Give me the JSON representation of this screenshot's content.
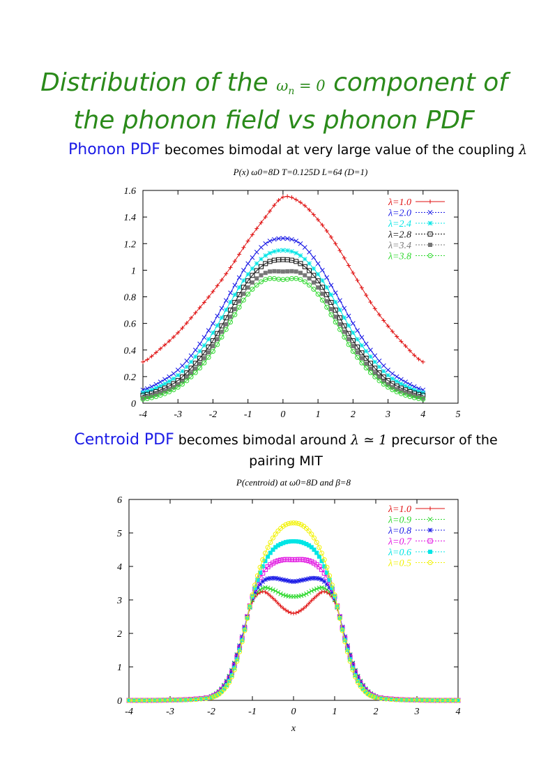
{
  "slide": {
    "title_line1_pre": "Distribution of the ",
    "title_math": "ω",
    "title_math_sub": "n",
    "title_math_rest": " = 0",
    "title_line1_post": " component of",
    "title_line2": "the phonon field vs phonon PDF",
    "caption1_highlight": "Phonon PDF",
    "caption1_text": " becomes bimodal at very large value of the coupling ",
    "caption1_math": "λ",
    "caption2_highlight": "Centroid PDF",
    "caption2_text_a": " becomes bimodal around ",
    "caption2_math": "λ ≃ 1",
    "caption2_text_b": " precursor of the pairing MIT",
    "colors": {
      "title": "#2a8a1a",
      "highlight": "#1a1ae6"
    }
  },
  "chart_data": [
    {
      "type": "line",
      "title": "P(x) ω0=8D T=0.125D L=64 (D=1)",
      "xlabel": "",
      "ylabel": "",
      "xlim": [
        -4,
        5
      ],
      "ylim": [
        0,
        1.6
      ],
      "xticks": [
        "-4",
        "-3",
        "-2",
        "-1",
        "0",
        "1",
        "2",
        "3",
        "4",
        "5"
      ],
      "yticks": [
        "0",
        "0.2",
        "0.4",
        "0.6",
        "0.8",
        "1",
        "1.2",
        "1.4",
        "1.6"
      ],
      "legend_position": "top-right",
      "x": [
        -4,
        -3.5,
        -3,
        -2.5,
        -2,
        -1.5,
        -1,
        -0.5,
        0,
        0.5,
        1,
        1.5,
        2,
        2.5,
        3,
        3.5,
        4
      ],
      "series": [
        {
          "name": "λ=1.0",
          "color": "#e01010",
          "marker": "plus",
          "values": [
            0.31,
            0.41,
            0.53,
            0.68,
            0.84,
            1.02,
            1.22,
            1.4,
            1.55,
            1.51,
            1.38,
            1.2,
            0.98,
            0.76,
            0.58,
            0.43,
            0.31
          ]
        },
        {
          "name": "λ=2.0",
          "color": "#1a1ae6",
          "marker": "x",
          "values": [
            0.1,
            0.16,
            0.25,
            0.4,
            0.6,
            0.83,
            1.05,
            1.2,
            1.24,
            1.2,
            1.05,
            0.83,
            0.6,
            0.4,
            0.25,
            0.16,
            0.1
          ]
        },
        {
          "name": "λ=2.4",
          "color": "#00e5e5",
          "marker": "star",
          "values": [
            0.08,
            0.13,
            0.21,
            0.35,
            0.53,
            0.76,
            0.97,
            1.11,
            1.15,
            1.11,
            0.97,
            0.76,
            0.53,
            0.35,
            0.21,
            0.13,
            0.08
          ]
        },
        {
          "name": "λ=2.8",
          "color": "#111111",
          "marker": "square",
          "values": [
            0.06,
            0.1,
            0.17,
            0.3,
            0.47,
            0.7,
            0.92,
            1.05,
            1.08,
            1.05,
            0.92,
            0.7,
            0.47,
            0.3,
            0.17,
            0.1,
            0.06
          ]
        },
        {
          "name": "λ=3.4",
          "color": "#777777",
          "marker": "fsquare",
          "values": [
            0.04,
            0.08,
            0.14,
            0.26,
            0.43,
            0.65,
            0.87,
            0.98,
            0.99,
            0.98,
            0.87,
            0.65,
            0.43,
            0.26,
            0.14,
            0.08,
            0.04
          ]
        },
        {
          "name": "λ=3.8",
          "color": "#2ed82e",
          "marker": "circle",
          "values": [
            0.03,
            0.06,
            0.12,
            0.23,
            0.39,
            0.61,
            0.82,
            0.93,
            0.93,
            0.93,
            0.82,
            0.61,
            0.39,
            0.23,
            0.12,
            0.06,
            0.03
          ]
        }
      ]
    },
    {
      "type": "line",
      "title": "P(centroid) at ω0=8D and β=8",
      "xlabel": "x",
      "ylabel": "",
      "xlim": [
        -4,
        4
      ],
      "ylim": [
        0,
        6
      ],
      "xticks": [
        "-4",
        "-3",
        "-2",
        "-1",
        "0",
        "1",
        "2",
        "3",
        "4"
      ],
      "yticks": [
        "0",
        "1",
        "2",
        "3",
        "4",
        "5",
        "6"
      ],
      "legend_position": "top-right",
      "x": [
        -4,
        -3.5,
        -3,
        -2.5,
        -2,
        -1.75,
        -1.5,
        -1.25,
        -1,
        -0.75,
        -0.5,
        -0.25,
        0,
        0.25,
        0.5,
        0.75,
        1,
        1.25,
        1.5,
        1.75,
        2,
        2.5,
        3,
        3.5,
        4
      ],
      "series": [
        {
          "name": "λ=1.0",
          "color": "#e01010",
          "marker": "plus",
          "values": [
            0,
            0,
            0.01,
            0.03,
            0.12,
            0.35,
            0.9,
            1.9,
            2.95,
            3.25,
            3.05,
            2.75,
            2.6,
            2.75,
            3.05,
            3.25,
            2.95,
            1.9,
            0.9,
            0.35,
            0.12,
            0.03,
            0.01,
            0,
            0
          ]
        },
        {
          "name": "λ=0.9",
          "color": "#2ed82e",
          "marker": "x",
          "values": [
            0,
            0,
            0.01,
            0.03,
            0.12,
            0.35,
            0.9,
            1.9,
            3.0,
            3.35,
            3.3,
            3.15,
            3.1,
            3.15,
            3.3,
            3.35,
            3.0,
            1.9,
            0.9,
            0.35,
            0.12,
            0.03,
            0.01,
            0,
            0
          ]
        },
        {
          "name": "λ=0.8",
          "color": "#1a1ae6",
          "marker": "star",
          "values": [
            0,
            0,
            0.01,
            0.03,
            0.11,
            0.33,
            0.88,
            1.9,
            3.05,
            3.55,
            3.65,
            3.6,
            3.55,
            3.6,
            3.65,
            3.55,
            3.05,
            1.9,
            0.88,
            0.33,
            0.11,
            0.03,
            0.01,
            0,
            0
          ]
        },
        {
          "name": "λ=0.7",
          "color": "#e010e0",
          "marker": "square",
          "values": [
            0,
            0,
            0.01,
            0.03,
            0.1,
            0.3,
            0.82,
            1.85,
            3.1,
            3.8,
            4.1,
            4.2,
            4.2,
            4.2,
            4.1,
            3.8,
            3.1,
            1.85,
            0.82,
            0.3,
            0.1,
            0.03,
            0.01,
            0,
            0
          ]
        },
        {
          "name": "λ=0.6",
          "color": "#00e5e5",
          "marker": "fsquare",
          "values": [
            0,
            0,
            0.01,
            0.02,
            0.09,
            0.27,
            0.75,
            1.8,
            3.1,
            4.0,
            4.5,
            4.7,
            4.75,
            4.7,
            4.5,
            4.0,
            3.1,
            1.8,
            0.75,
            0.27,
            0.09,
            0.02,
            0.01,
            0,
            0
          ]
        },
        {
          "name": "λ=0.5",
          "color": "#f2f200",
          "marker": "circle",
          "values": [
            0,
            0,
            0.01,
            0.02,
            0.08,
            0.25,
            0.7,
            1.75,
            3.15,
            4.2,
            4.85,
            5.2,
            5.3,
            5.2,
            4.85,
            4.2,
            3.15,
            1.75,
            0.7,
            0.25,
            0.08,
            0.02,
            0.01,
            0,
            0
          ]
        }
      ]
    }
  ]
}
